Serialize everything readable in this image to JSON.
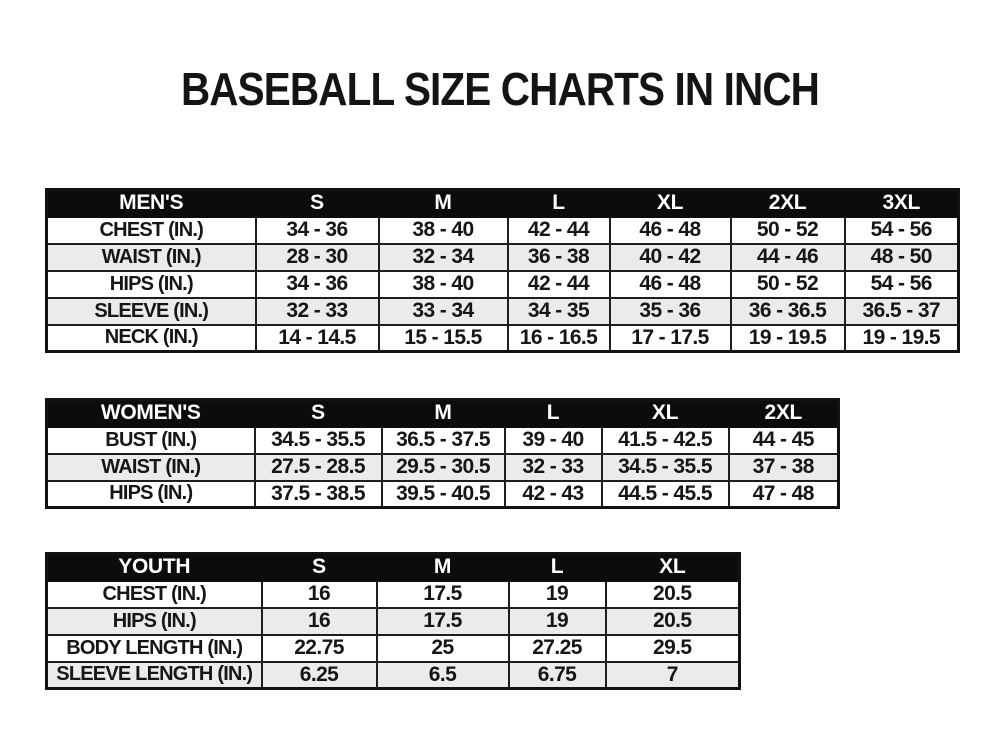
{
  "page": {
    "title": "BASEBALL SIZE CHARTS IN INCH"
  },
  "colors": {
    "header_bg": "#0c0c0c",
    "header_text": "#ffffff",
    "stripe_bg": "#ebebeb",
    "border_strong": "#121212",
    "border_inner": "#1e1e1e",
    "page_bg": "#ffffff"
  },
  "tables": [
    {
      "id": "mens",
      "group_label": "MEN'S",
      "header": [
        "MEN'S",
        "S",
        "M",
        "L",
        "XL",
        "2XL",
        "3XL"
      ],
      "rows": [
        [
          "CHEST (IN.)",
          "34 - 36",
          "38 - 40",
          "42 - 44",
          "46 - 48",
          "50 - 52",
          "54 - 56"
        ],
        [
          "WAIST (IN.)",
          "28 - 30",
          "32 - 34",
          "36 - 38",
          "40 - 42",
          "44 - 46",
          "48 - 50"
        ],
        [
          "HIPS (IN.)",
          "34 - 36",
          "38 - 40",
          "42 - 44",
          "46 - 48",
          "50 - 52",
          "54 - 56"
        ],
        [
          "SLEEVE (IN.)",
          "32 - 33",
          "33 - 34",
          "34 - 35",
          "35 - 36",
          "36 - 36.5",
          "36.5 - 37"
        ],
        [
          "NECK (IN.)",
          "14 - 14.5",
          "15 - 15.5",
          "16 - 16.5",
          "17 - 17.5",
          "19 - 19.5",
          "19 - 19.5"
        ]
      ]
    },
    {
      "id": "womens",
      "group_label": "WOMEN'S",
      "header": [
        "WOMEN'S",
        "S",
        "M",
        "L",
        "XL",
        "2XL"
      ],
      "rows": [
        [
          "BUST (IN.)",
          "34.5 - 35.5",
          "36.5 - 37.5",
          "39 - 40",
          "41.5 - 42.5",
          "44 - 45"
        ],
        [
          "WAIST (IN.)",
          "27.5 - 28.5",
          "29.5 - 30.5",
          "32 - 33",
          "34.5 - 35.5",
          "37 - 38"
        ],
        [
          "HIPS (IN.)",
          "37.5 - 38.5",
          "39.5 - 40.5",
          "42 - 43",
          "44.5 - 45.5",
          "47 - 48"
        ]
      ]
    },
    {
      "id": "youth",
      "group_label": "YOUTH",
      "header": [
        "YOUTH",
        "S",
        "M",
        "L",
        "XL"
      ],
      "rows": [
        [
          "CHEST (IN.)",
          "16",
          "17.5",
          "19",
          "20.5"
        ],
        [
          "HIPS (IN.)",
          "16",
          "17.5",
          "19",
          "20.5"
        ],
        [
          "BODY LENGTH (IN.)",
          "22.75",
          "25",
          "27.25",
          "29.5"
        ],
        [
          "SLEEVE LENGTH (IN.)",
          "6.25",
          "6.5",
          "6.75",
          "7"
        ]
      ]
    }
  ]
}
